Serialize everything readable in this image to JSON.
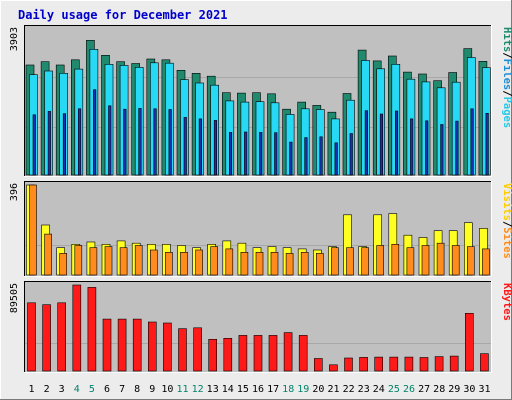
{
  "title": "Daily usage for December 2021",
  "colors": {
    "background": "#ececec",
    "title": "#0000cc",
    "plot_bg": "#c0c0c0",
    "gridline": "#a8a8a8",
    "hits": "#1f8a6e",
    "files": "#27d9f5",
    "pages": "#1d2fae",
    "visits": "#ffff22",
    "sites": "#ff8c1c",
    "kbytes": "#ff1a1a",
    "weekend_day": "#00836a",
    "weekday_day": "#000000"
  },
  "chart_data": [
    {
      "type": "bar",
      "title": "Daily usage for December 2021",
      "categories": [
        "1",
        "2",
        "3",
        "4",
        "5",
        "6",
        "7",
        "8",
        "9",
        "10",
        "11",
        "12",
        "13",
        "14",
        "15",
        "16",
        "17",
        "18",
        "19",
        "20",
        "21",
        "22",
        "23",
        "24",
        "25",
        "26",
        "27",
        "28",
        "29",
        "30",
        "31"
      ],
      "weekend_days": [
        "4",
        "5",
        "11",
        "12",
        "18",
        "19",
        "25",
        "26"
      ],
      "max_label": "3903",
      "ylim": [
        0,
        3903
      ],
      "grid": true,
      "legend": "right-vertical",
      "series": [
        {
          "name": "Hits",
          "values": [
            2940,
            3030,
            2940,
            3080,
            3600,
            3200,
            3030,
            2980,
            3100,
            3080,
            2800,
            2720,
            2640,
            2200,
            2190,
            2200,
            2170,
            1760,
            1950,
            1860,
            1680,
            2180,
            3340,
            3050,
            3180,
            2750,
            2700,
            2520,
            2740,
            3380,
            3040
          ]
        },
        {
          "name": "Files",
          "values": [
            2680,
            2780,
            2720,
            2830,
            3360,
            2960,
            2930,
            2880,
            3000,
            2990,
            2550,
            2460,
            2400,
            1980,
            1950,
            1960,
            1930,
            1620,
            1770,
            1750,
            1500,
            2000,
            3060,
            2840,
            2960,
            2560,
            2490,
            2330,
            2480,
            3140,
            2870
          ]
        },
        {
          "name": "Pages",
          "values": [
            1610,
            1700,
            1640,
            1770,
            2280,
            1850,
            1760,
            1780,
            1770,
            1750,
            1540,
            1500,
            1460,
            1140,
            1150,
            1140,
            1130,
            880,
            1000,
            1020,
            860,
            1110,
            1720,
            1630,
            1710,
            1500,
            1450,
            1350,
            1440,
            1770,
            1650
          ]
        }
      ]
    },
    {
      "type": "bar",
      "categories": [
        "1",
        "2",
        "3",
        "4",
        "5",
        "6",
        "7",
        "8",
        "9",
        "10",
        "11",
        "12",
        "13",
        "14",
        "15",
        "16",
        "17",
        "18",
        "19",
        "20",
        "21",
        "22",
        "23",
        "24",
        "25",
        "26",
        "27",
        "28",
        "29",
        "30",
        "31"
      ],
      "max_label": "396",
      "ylim": [
        0,
        396
      ],
      "grid": true,
      "legend": "right-vertical",
      "series": [
        {
          "name": "Visits",
          "values": [
            396,
            220,
            120,
            135,
            145,
            135,
            150,
            140,
            135,
            135,
            130,
            120,
            135,
            150,
            140,
            120,
            125,
            120,
            115,
            110,
            125,
            265,
            125,
            265,
            270,
            175,
            165,
            195,
            195,
            230,
            205
          ]
        },
        {
          "name": "Sites",
          "values": [
            396,
            180,
            95,
            130,
            120,
            125,
            120,
            130,
            110,
            100,
            100,
            110,
            125,
            115,
            100,
            100,
            100,
            95,
            100,
            95,
            120,
            120,
            120,
            130,
            135,
            120,
            130,
            140,
            130,
            125,
            115
          ]
        }
      ]
    },
    {
      "type": "bar",
      "categories": [
        "1",
        "2",
        "3",
        "4",
        "5",
        "6",
        "7",
        "8",
        "9",
        "10",
        "11",
        "12",
        "13",
        "14",
        "15",
        "16",
        "17",
        "18",
        "19",
        "20",
        "21",
        "22",
        "23",
        "24",
        "25",
        "26",
        "27",
        "28",
        "29",
        "30",
        "31"
      ],
      "max_label": "89505",
      "ylim": [
        0,
        89505
      ],
      "grid": true,
      "legend": "right-vertical",
      "series": [
        {
          "name": "KBytes",
          "values": [
            71000,
            69000,
            71000,
            89505,
            87000,
            54000,
            54000,
            54000,
            51000,
            50000,
            44000,
            45000,
            33000,
            34000,
            37000,
            37000,
            37000,
            40000,
            37000,
            13000,
            6500,
            13500,
            14200,
            14500,
            14500,
            14500,
            14000,
            15000,
            15500,
            60000,
            18000
          ]
        }
      ]
    }
  ],
  "legend_labels": {
    "top": [
      "Hits",
      "Files",
      "Pages"
    ],
    "middle": [
      "Visits",
      "Sites"
    ],
    "bottom": [
      "KBytes"
    ],
    "separator": "/"
  }
}
